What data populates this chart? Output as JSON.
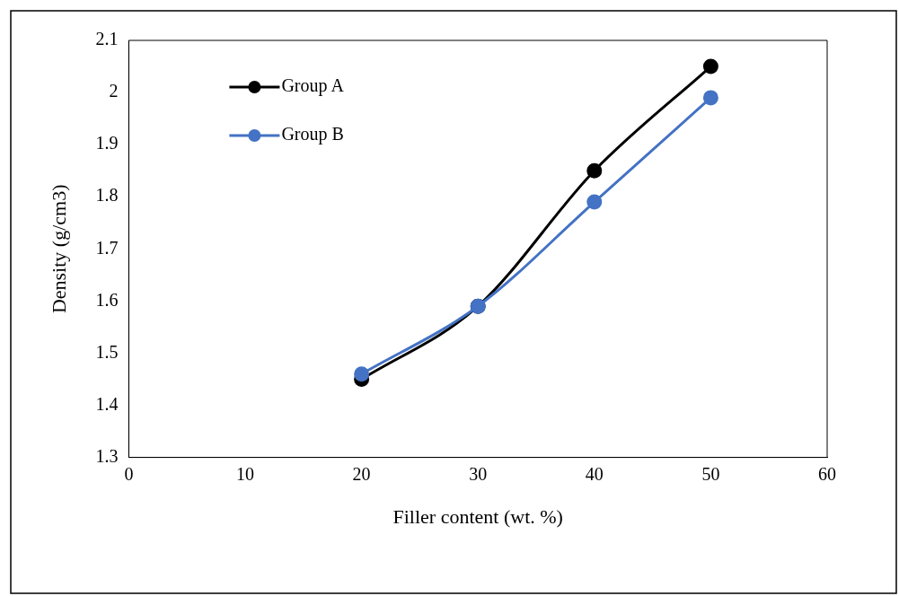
{
  "chart_data": {
    "type": "line",
    "xlabel": "Filler content (wt. %)",
    "ylabel": "Density (g/cm3)",
    "x": [
      20,
      30,
      40,
      50
    ],
    "series": [
      {
        "name": "Group A",
        "color": "#000000",
        "values": [
          1.45,
          1.59,
          1.85,
          2.05
        ]
      },
      {
        "name": "Group B",
        "color": "#4472c4",
        "values": [
          1.46,
          1.59,
          1.79,
          1.99
        ]
      }
    ],
    "xlim": [
      0,
      60
    ],
    "xticks": [
      0,
      10,
      20,
      30,
      40,
      50,
      60
    ],
    "ylim": [
      1.3,
      2.1
    ],
    "yticks": [
      1.3,
      1.4,
      1.5,
      1.6,
      1.7,
      1.8,
      1.9,
      2,
      2.1
    ],
    "grid": false,
    "legend": "top left",
    "marker": "circle",
    "line_style": "solid"
  }
}
